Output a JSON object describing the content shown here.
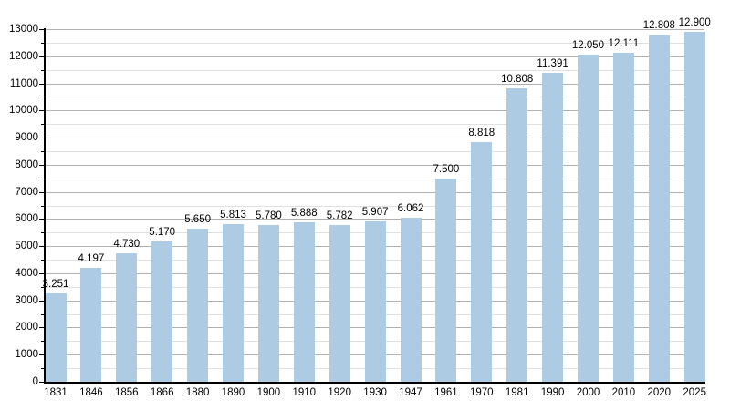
{
  "chart_data": {
    "type": "bar",
    "title": "",
    "xlabel": "",
    "ylabel": "",
    "categories": [
      "1831",
      "1846",
      "1856",
      "1866",
      "1880",
      "1890",
      "1900",
      "1910",
      "1920",
      "1930",
      "1947",
      "1961",
      "1970",
      "1981",
      "1990",
      "2000",
      "2010",
      "2020",
      "2025"
    ],
    "values": [
      3251,
      4197,
      4730,
      5170,
      5650,
      5813,
      5780,
      5888,
      5782,
      5907,
      6062,
      7500,
      8818,
      10808,
      11391,
      12050,
      12111,
      12808,
      12900
    ],
    "value_labels": [
      "3.251",
      "4.197",
      "4.730",
      "5.170",
      "5.650",
      "5.813",
      "5.780",
      "5.888",
      "5.782",
      "5.907",
      "6.062",
      "7.500",
      "8.818",
      "10.808",
      "11.391",
      "12.050",
      "12.111",
      "12.808",
      "12.900"
    ],
    "ylim": [
      0,
      13000
    ],
    "y_major_step": 1000,
    "y_minor_step": 500,
    "y_tick_labels": [
      "0",
      "1000",
      "2000",
      "3000",
      "4000",
      "5000",
      "6000",
      "7000",
      "8000",
      "9000",
      "10000",
      "11000",
      "12000",
      "13000"
    ],
    "grid": "major-and-minor-horizontal",
    "legend": "none"
  },
  "colors": {
    "bar_fill": "#aecbe4",
    "major_gridline": "#b0b0b0",
    "minor_gridline": "#e0e0e0",
    "axis": "#000000",
    "text": "#000000",
    "background": "#ffffff"
  }
}
